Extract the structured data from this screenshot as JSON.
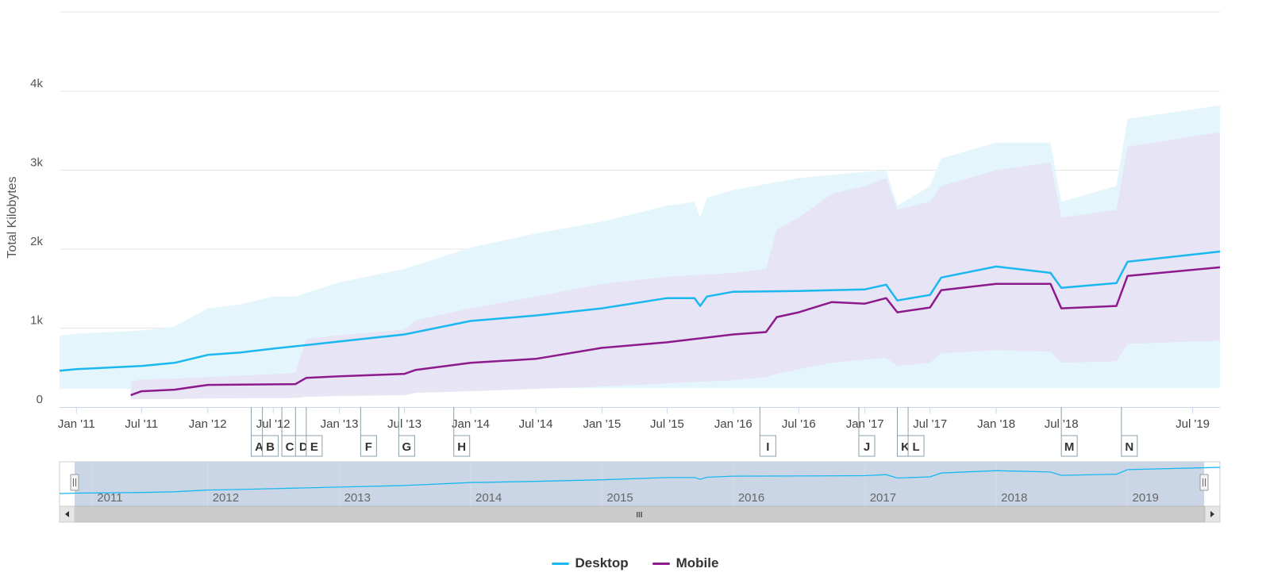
{
  "chart_data": {
    "type": "area",
    "title": "",
    "xlabel": "",
    "ylabel": "Total Kilobytes",
    "ylim": [
      0,
      4000
    ],
    "yticks": [
      {
        "value": 0,
        "label": "0"
      },
      {
        "value": 1000,
        "label": "1k"
      },
      {
        "value": 2000,
        "label": "2k"
      },
      {
        "value": 3000,
        "label": "3k"
      },
      {
        "value": 4000,
        "label": "4k"
      }
    ],
    "xlim": [
      "2010-11-15",
      "2019-09-15"
    ],
    "xticks": [
      {
        "date": "2011-01-01",
        "label": "Jan '11"
      },
      {
        "date": "2011-07-01",
        "label": "Jul '11"
      },
      {
        "date": "2012-01-01",
        "label": "Jan '12"
      },
      {
        "date": "2012-07-01",
        "label": "Jul '12"
      },
      {
        "date": "2013-01-01",
        "label": "Jan '13"
      },
      {
        "date": "2013-07-01",
        "label": "Jul '13"
      },
      {
        "date": "2014-01-01",
        "label": "Jan '14"
      },
      {
        "date": "2014-07-01",
        "label": "Jul '14"
      },
      {
        "date": "2015-01-01",
        "label": "Jan '15"
      },
      {
        "date": "2015-07-01",
        "label": "Jul '15"
      },
      {
        "date": "2016-01-01",
        "label": "Jan '16"
      },
      {
        "date": "2016-07-01",
        "label": "Jul '16"
      },
      {
        "date": "2017-01-01",
        "label": "Jan '17"
      },
      {
        "date": "2017-07-01",
        "label": "Jul '17"
      },
      {
        "date": "2018-01-01",
        "label": "Jan '18"
      },
      {
        "date": "2018-07-01",
        "label": "Jul '18"
      },
      {
        "date": "2019-07-01",
        "label": "Jul '19"
      }
    ],
    "series": [
      {
        "name": "Desktop",
        "color": "#1bb8f0",
        "band_color": "#e4f6fc",
        "points": [
          {
            "x": "2010-11-15",
            "y": 460,
            "low": 230,
            "high": 900
          },
          {
            "x": "2011-01-01",
            "y": 480,
            "low": 230,
            "high": 930
          },
          {
            "x": "2011-04-01",
            "y": 500,
            "low": 230,
            "high": 950
          },
          {
            "x": "2011-07-01",
            "y": 520,
            "low": 230,
            "high": 970
          },
          {
            "x": "2011-10-01",
            "y": 560,
            "low": 240,
            "high": 1020
          },
          {
            "x": "2012-01-01",
            "y": 660,
            "low": 240,
            "high": 1250
          },
          {
            "x": "2012-04-01",
            "y": 690,
            "low": 240,
            "high": 1300
          },
          {
            "x": "2012-07-01",
            "y": 740,
            "low": 240,
            "high": 1400
          },
          {
            "x": "2012-09-01",
            "y": 770,
            "low": 240,
            "high": 1400
          },
          {
            "x": "2013-01-01",
            "y": 830,
            "low": 240,
            "high": 1580
          },
          {
            "x": "2013-07-01",
            "y": 920,
            "low": 240,
            "high": 1750
          },
          {
            "x": "2014-01-01",
            "y": 1090,
            "low": 240,
            "high": 2020
          },
          {
            "x": "2014-07-01",
            "y": 1160,
            "low": 240,
            "high": 2200
          },
          {
            "x": "2015-01-01",
            "y": 1250,
            "low": 240,
            "high": 2350
          },
          {
            "x": "2015-07-01",
            "y": 1380,
            "low": 240,
            "high": 2550
          },
          {
            "x": "2015-09-15",
            "y": 1380,
            "low": 240,
            "high": 2600
          },
          {
            "x": "2015-10-01",
            "y": 1280,
            "low": 240,
            "high": 2400
          },
          {
            "x": "2015-10-20",
            "y": 1400,
            "low": 240,
            "high": 2650
          },
          {
            "x": "2016-01-01",
            "y": 1460,
            "low": 240,
            "high": 2750
          },
          {
            "x": "2016-07-01",
            "y": 1470,
            "low": 240,
            "high": 2900
          },
          {
            "x": "2017-01-01",
            "y": 1490,
            "low": 240,
            "high": 2980
          },
          {
            "x": "2017-03-01",
            "y": 1550,
            "low": 240,
            "high": 3000
          },
          {
            "x": "2017-04-01",
            "y": 1350,
            "low": 240,
            "high": 2550
          },
          {
            "x": "2017-07-01",
            "y": 1420,
            "low": 240,
            "high": 2800
          },
          {
            "x": "2017-08-01",
            "y": 1640,
            "low": 240,
            "high": 3150
          },
          {
            "x": "2018-01-01",
            "y": 1780,
            "low": 240,
            "high": 3350
          },
          {
            "x": "2018-06-01",
            "y": 1700,
            "low": 240,
            "high": 3350
          },
          {
            "x": "2018-07-01",
            "y": 1510,
            "low": 240,
            "high": 2600
          },
          {
            "x": "2018-12-01",
            "y": 1570,
            "low": 240,
            "high": 2800
          },
          {
            "x": "2019-01-01",
            "y": 1840,
            "low": 240,
            "high": 3650
          },
          {
            "x": "2019-09-15",
            "y": 1970,
            "low": 240,
            "high": 3820
          }
        ]
      },
      {
        "name": "Mobile",
        "color": "#8c1a8c",
        "band_color": "#e6e2f4",
        "points": [
          {
            "x": "2011-06-01",
            "y": 150,
            "low": 100,
            "high": 320
          },
          {
            "x": "2011-07-01",
            "y": 200,
            "low": 100,
            "high": 350
          },
          {
            "x": "2011-10-01",
            "y": 220,
            "low": 100,
            "high": 360
          },
          {
            "x": "2012-01-01",
            "y": 280,
            "low": 110,
            "high": 380
          },
          {
            "x": "2012-09-01",
            "y": 290,
            "low": 115,
            "high": 430
          },
          {
            "x": "2012-10-01",
            "y": 370,
            "low": 130,
            "high": 860
          },
          {
            "x": "2013-01-01",
            "y": 390,
            "low": 140,
            "high": 910
          },
          {
            "x": "2013-07-01",
            "y": 420,
            "low": 150,
            "high": 980
          },
          {
            "x": "2013-08-01",
            "y": 470,
            "low": 180,
            "high": 1100
          },
          {
            "x": "2014-01-01",
            "y": 560,
            "low": 200,
            "high": 1250
          },
          {
            "x": "2014-07-01",
            "y": 610,
            "low": 230,
            "high": 1400
          },
          {
            "x": "2015-01-01",
            "y": 750,
            "low": 260,
            "high": 1560
          },
          {
            "x": "2015-07-01",
            "y": 820,
            "low": 300,
            "high": 1650
          },
          {
            "x": "2016-01-01",
            "y": 920,
            "low": 340,
            "high": 1700
          },
          {
            "x": "2016-04-01",
            "y": 950,
            "low": 380,
            "high": 1750
          },
          {
            "x": "2016-05-01",
            "y": 1140,
            "low": 420,
            "high": 2250
          },
          {
            "x": "2016-07-01",
            "y": 1200,
            "low": 480,
            "high": 2400
          },
          {
            "x": "2016-10-01",
            "y": 1330,
            "low": 560,
            "high": 2700
          },
          {
            "x": "2017-01-01",
            "y": 1310,
            "low": 600,
            "high": 2800
          },
          {
            "x": "2017-03-01",
            "y": 1380,
            "low": 620,
            "high": 2900
          },
          {
            "x": "2017-04-01",
            "y": 1200,
            "low": 520,
            "high": 2500
          },
          {
            "x": "2017-07-01",
            "y": 1260,
            "low": 560,
            "high": 2600
          },
          {
            "x": "2017-08-01",
            "y": 1480,
            "low": 680,
            "high": 2800
          },
          {
            "x": "2018-01-01",
            "y": 1560,
            "low": 720,
            "high": 3000
          },
          {
            "x": "2018-06-01",
            "y": 1560,
            "low": 700,
            "high": 3100
          },
          {
            "x": "2018-07-01",
            "y": 1250,
            "low": 560,
            "high": 2400
          },
          {
            "x": "2018-12-01",
            "y": 1280,
            "low": 580,
            "high": 2500
          },
          {
            "x": "2019-01-01",
            "y": 1660,
            "low": 800,
            "high": 3300
          },
          {
            "x": "2019-09-15",
            "y": 1770,
            "low": 840,
            "high": 3480
          }
        ]
      }
    ],
    "flags": [
      {
        "x": "2012-05-01",
        "label": "A"
      },
      {
        "x": "2012-06-01",
        "label": "B"
      },
      {
        "x": "2012-07-25",
        "label": "C"
      },
      {
        "x": "2012-09-01",
        "label": "D"
      },
      {
        "x": "2012-10-01",
        "label": "E"
      },
      {
        "x": "2013-03-01",
        "label": "F"
      },
      {
        "x": "2013-06-15",
        "label": "G"
      },
      {
        "x": "2013-11-15",
        "label": "H"
      },
      {
        "x": "2016-03-15",
        "label": "I"
      },
      {
        "x": "2016-12-15",
        "label": "J"
      },
      {
        "x": "2017-04-01",
        "label": "K"
      },
      {
        "x": "2017-05-01",
        "label": "L"
      },
      {
        "x": "2018-07-01",
        "label": "M"
      },
      {
        "x": "2018-12-15",
        "label": "N"
      }
    ],
    "navigator": {
      "year_labels": [
        "2011",
        "2012",
        "2013",
        "2014",
        "2015",
        "2016",
        "2017",
        "2018",
        "2019"
      ],
      "grip_icon": "III"
    },
    "legend": {
      "position": "bottom-center",
      "items": [
        {
          "label": "Desktop",
          "color": "#1bb8f0"
        },
        {
          "label": "Mobile",
          "color": "#8c1a8c"
        }
      ]
    }
  }
}
